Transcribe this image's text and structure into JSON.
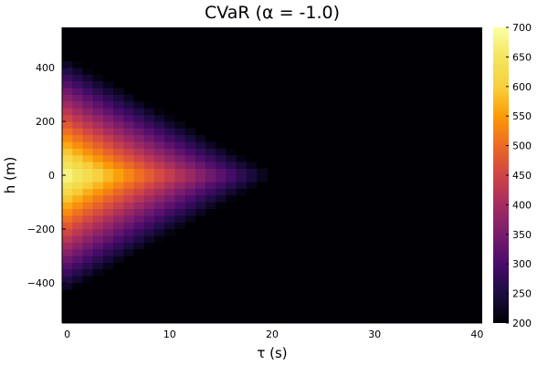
{
  "chart_data": {
    "type": "heatmap",
    "title": "CVaR (α = -1.0)",
    "xlabel": "τ (s)",
    "ylabel": "h (m)",
    "x_ticks": [
      0,
      10,
      20,
      30,
      40
    ],
    "x_tick_labels": [
      "0",
      "10",
      "20",
      "30",
      "40"
    ],
    "y_ticks": [
      400,
      200,
      0,
      -200,
      -400
    ],
    "y_tick_labels": [
      "400",
      "200",
      "0",
      "−200",
      "−400"
    ],
    "xlim": [
      -0.5,
      40.5
    ],
    "ylim": [
      -550,
      550
    ],
    "grid": false,
    "colorscale": "inferno",
    "colorbar": {
      "range": [
        200,
        700
      ],
      "ticks": [
        200,
        250,
        300,
        350,
        400,
        450,
        500,
        550,
        600,
        650,
        700
      ],
      "tick_labels": [
        "200",
        "250",
        "300",
        "350",
        "400",
        "450",
        "500",
        "550",
        "600",
        "650",
        "700"
      ]
    },
    "background_value": 200,
    "x_cell_width": 1,
    "y_cell_height": 25,
    "peak_value": 700,
    "nonzero_region": {
      "x_extent_at_h0": 21,
      "h_extent_at_tau0": 450
    }
  }
}
